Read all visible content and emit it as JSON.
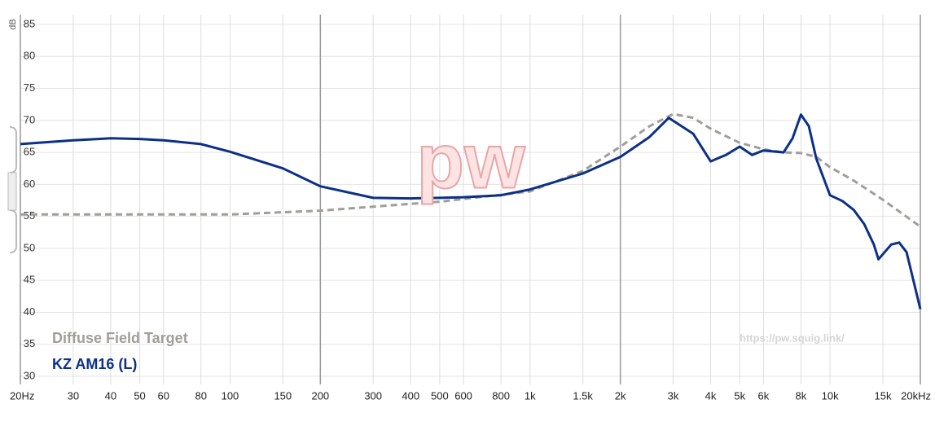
{
  "chart_data": {
    "type": "line",
    "y_label": "dB",
    "watermark": "pw",
    "source": "https://pw.squig.link/",
    "xscale": "log",
    "xlim": [
      20,
      20000
    ],
    "ylim": [
      30,
      85
    ],
    "grid": true,
    "legend": "lower left",
    "xticks": [
      {
        "value": 20,
        "label": "20Hz"
      },
      30,
      40,
      50,
      60,
      80,
      100,
      150,
      200,
      300,
      400,
      500,
      600,
      800,
      {
        "value": 1000,
        "label": "1k"
      },
      {
        "value": 1500,
        "label": "1.5k"
      },
      {
        "value": 2000,
        "label": "2k"
      },
      {
        "value": 3000,
        "label": "3k"
      },
      {
        "value": 4000,
        "label": "4k"
      },
      {
        "value": 5000,
        "label": "5k"
      },
      {
        "value": 6000,
        "label": "6k"
      },
      {
        "value": 8000,
        "label": "8k"
      },
      {
        "value": 10000,
        "label": "10k"
      },
      {
        "value": 15000,
        "label": "15k"
      },
      {
        "value": 20000,
        "label": "20kHz"
      }
    ],
    "yticks": [
      30,
      35,
      40,
      45,
      50,
      55,
      60,
      65,
      70,
      75,
      80,
      85
    ],
    "series": [
      {
        "name": "Diffuse Field Target",
        "color": "#a19e99",
        "dashed": true,
        "x": [
          20,
          50,
          100,
          200,
          500,
          1000,
          1500,
          2000,
          2500,
          3000,
          3500,
          4000,
          5000,
          6000,
          7000,
          8000,
          9000,
          10000,
          12000,
          15000,
          20000
        ],
        "values": [
          55.3,
          55.3,
          55.3,
          55.9,
          57.3,
          58.9,
          62.1,
          65.9,
          69.1,
          71.0,
          70.4,
          68.7,
          66.5,
          65.5,
          65.0,
          64.9,
          64.3,
          62.7,
          60.6,
          57.6,
          53.4
        ]
      },
      {
        "name": "KZ AM16 (L)",
        "color": "#0c3087",
        "dashed": false,
        "x": [
          20,
          30,
          40,
          50,
          60,
          80,
          100,
          150,
          200,
          300,
          400,
          500,
          600,
          800,
          1000,
          1500,
          2000,
          2500,
          2900,
          3500,
          4000,
          4500,
          5000,
          5500,
          6000,
          7000,
          7500,
          8000,
          8500,
          9000,
          10000,
          11000,
          12000,
          13000,
          14000,
          14500,
          16000,
          17000,
          18000,
          20000
        ],
        "values": [
          66.3,
          66.9,
          67.2,
          67.1,
          66.9,
          66.3,
          65.1,
          62.5,
          59.7,
          57.9,
          57.8,
          57.9,
          58.0,
          58.3,
          59.2,
          61.7,
          64.3,
          67.4,
          70.4,
          67.9,
          63.6,
          64.6,
          65.9,
          64.6,
          65.3,
          65.0,
          67.2,
          70.9,
          69.1,
          64.0,
          58.3,
          57.4,
          56.0,
          53.8,
          50.6,
          48.3,
          50.6,
          50.9,
          49.4,
          40.5
        ]
      }
    ]
  }
}
